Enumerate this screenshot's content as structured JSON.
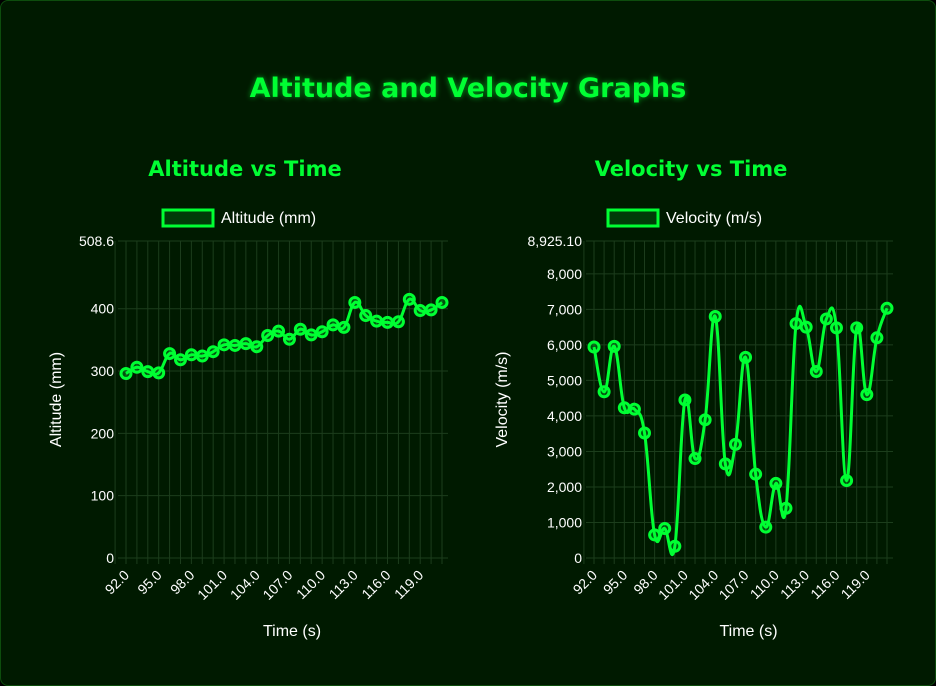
{
  "page": {
    "title": "Altitude and Velocity Graphs",
    "accent": "#00ff33",
    "background": "#001a00"
  },
  "charts": [
    {
      "title": "Altitude vs Time",
      "chart_data": {
        "type": "line",
        "series": [
          {
            "name": "Altitude (mm)",
            "x": [
              92,
              93,
              94,
              95,
              96,
              97,
              98,
              99,
              100,
              101,
              102,
              103,
              104,
              105,
              106,
              107,
              108,
              109,
              110,
              111,
              112,
              113,
              114,
              115,
              116,
              117,
              118,
              119,
              120,
              121
            ],
            "values": [
              296,
              306,
              299,
              297,
              328,
              318,
              326,
              324,
              331,
              342,
              341,
              344,
              339,
              357,
              364,
              351,
              367,
              358,
              363,
              374,
              370,
              410,
              389,
              380,
              378,
              379,
              415,
              397,
              398,
              410
            ]
          }
        ],
        "xlabel": "Time (s)",
        "ylabel": "Altitude (mm)",
        "ylim": [
          0,
          508.6
        ],
        "y_ticks": [
          "0",
          "100",
          "200",
          "300",
          "400",
          "508.6"
        ],
        "x_ticks": [
          "92.0",
          "95.0",
          "98.0",
          "101.0",
          "104.0",
          "107.0",
          "110.0",
          "113.0",
          "116.0",
          "119.0"
        ],
        "grid": true,
        "legend_position": "top",
        "color": "#00ff33"
      }
    },
    {
      "title": "Velocity vs Time",
      "chart_data": {
        "type": "line",
        "series": [
          {
            "name": "Velocity (m/s)",
            "x": [
              92,
              93,
              94,
              95,
              96,
              97,
              98,
              99,
              100,
              101,
              102,
              103,
              104,
              105,
              106,
              107,
              108,
              109,
              110,
              111,
              112,
              113,
              114,
              115,
              116,
              117,
              118,
              119,
              120,
              121
            ],
            "values": [
              5940,
              4680,
              5960,
              4230,
              4190,
              3520,
              650,
              830,
              330,
              4450,
              2800,
              3890,
              6800,
              2650,
              3200,
              5650,
              2360,
              870,
              2100,
              1400,
              6600,
              6500,
              5250,
              6730,
              6480,
              2180,
              6480,
              4600,
              6200,
              7030
            ]
          }
        ],
        "xlabel": "Time (s)",
        "ylabel": "Velocity (m/s)",
        "ylim": [
          0,
          8925.1
        ],
        "y_ticks": [
          "0",
          "1,000",
          "2,000",
          "3,000",
          "4,000",
          "5,000",
          "6,000",
          "7,000",
          "8,000",
          "8,925.10"
        ],
        "x_ticks": [
          "92.0",
          "95.0",
          "98.0",
          "101.0",
          "104.0",
          "107.0",
          "110.0",
          "113.0",
          "116.0",
          "119.0"
        ],
        "grid": true,
        "legend_position": "top",
        "color": "#00ff33"
      }
    }
  ]
}
